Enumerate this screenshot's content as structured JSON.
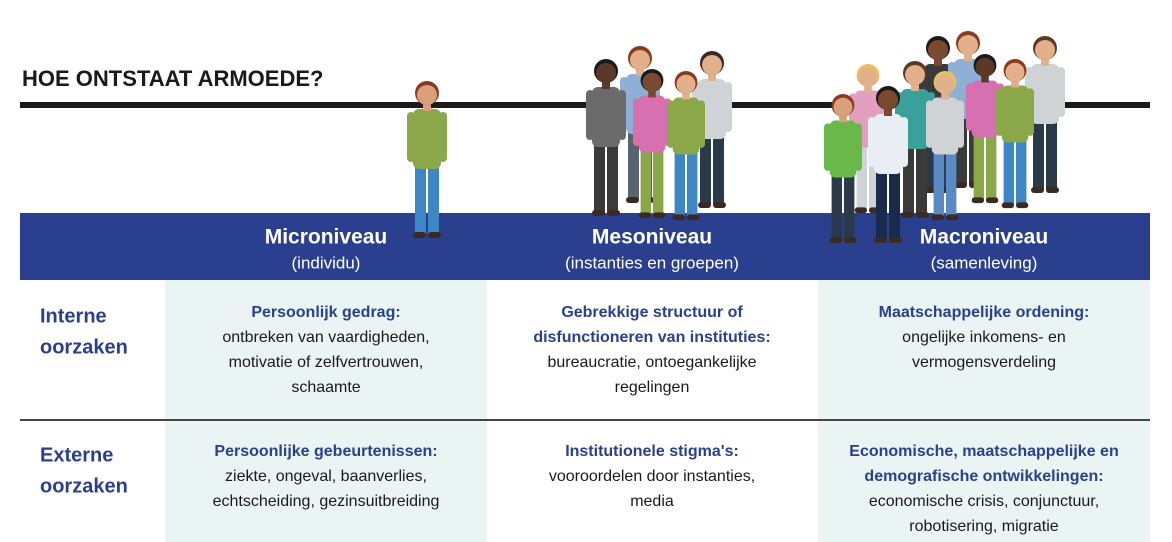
{
  "title": "HOE ONTSTAAT ARMOEDE?",
  "columns": [
    {
      "name": "Microniveau",
      "sub": "(individu)"
    },
    {
      "name": "Mesoniveau",
      "sub": "(instanties en groepen)"
    },
    {
      "name": "Macroniveau",
      "sub": "(samenleving)"
    }
  ],
  "rows": [
    {
      "label": [
        "Interne",
        "oorzaken"
      ],
      "cells": [
        {
          "heading": [
            "Persoonlijk gedrag:"
          ],
          "body": [
            "ontbreken van vaardigheden,",
            "motivatie of zelfvertrouwen,",
            "schaamte"
          ]
        },
        {
          "heading": [
            "Gebrekkige structuur of",
            "disfunctioneren van instituties:"
          ],
          "body": [
            "bureaucratie, ontoegankelijke",
            "regelingen"
          ]
        },
        {
          "heading": [
            "Maatschappelijke ordening:"
          ],
          "body": [
            "ongelijke inkomens- en",
            "vermogensverdeling"
          ]
        }
      ]
    },
    {
      "label": [
        "Externe",
        "oorzaken"
      ],
      "cells": [
        {
          "heading": [
            "Persoonlijke gebeurtenissen:"
          ],
          "body": [
            "ziekte, ongeval, baanverlies,",
            "echtscheiding, gezinsuitbreiding"
          ]
        },
        {
          "heading": [
            "Institutionele stigma's:"
          ],
          "body": [
            "vooroordelen door instanties,",
            "media"
          ]
        },
        {
          "heading": [
            "Economische, maatschappelijke en",
            "demografische ontwikkelingen:"
          ],
          "body": [
            "economische crisis, conjunctuur,",
            "robotisering, migratie"
          ]
        }
      ]
    }
  ]
}
